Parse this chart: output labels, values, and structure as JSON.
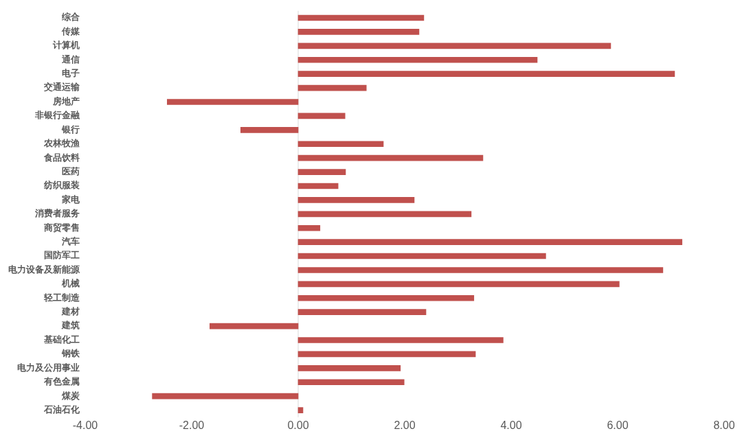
{
  "chart_data": {
    "type": "bar",
    "orientation": "horizontal",
    "categories": [
      "综合",
      "传媒",
      "计算机",
      "通信",
      "电子",
      "交通运输",
      "房地产",
      "非银行金融",
      "银行",
      "农林牧渔",
      "食品饮料",
      "医药",
      "纺织服装",
      "家电",
      "消费者服务",
      "商贸零售",
      "汽车",
      "国防军工",
      "电力设备及新能源",
      "机械",
      "轻工制造",
      "建材",
      "建筑",
      "基础化工",
      "钢铁",
      "电力及公用事业",
      "有色金属",
      "煤炭",
      "石油石化"
    ],
    "values": [
      2.36,
      2.27,
      5.87,
      4.49,
      7.07,
      1.28,
      -2.46,
      0.88,
      -1.08,
      1.6,
      3.47,
      0.89,
      0.75,
      2.18,
      3.25,
      0.41,
      7.21,
      4.65,
      6.85,
      6.03,
      3.3,
      2.4,
      -1.66,
      3.85,
      3.33,
      1.92,
      1.99,
      -2.74,
      0.09
    ],
    "color": "#c0504d",
    "xlim": [
      -4,
      8
    ],
    "xticks": [
      {
        "value": -4,
        "label": "-4.00"
      },
      {
        "value": -2,
        "label": "-2.00"
      },
      {
        "value": 0,
        "label": "0.00"
      },
      {
        "value": 2,
        "label": "2.00"
      },
      {
        "value": 4,
        "label": "4.00"
      },
      {
        "value": 6,
        "label": "6.00"
      },
      {
        "value": 8,
        "label": "8.00"
      }
    ],
    "ref_lines": [
      {
        "axis": "x",
        "value": 0,
        "color": "#d9d9d9"
      }
    ],
    "grid": false,
    "legend": false
  }
}
